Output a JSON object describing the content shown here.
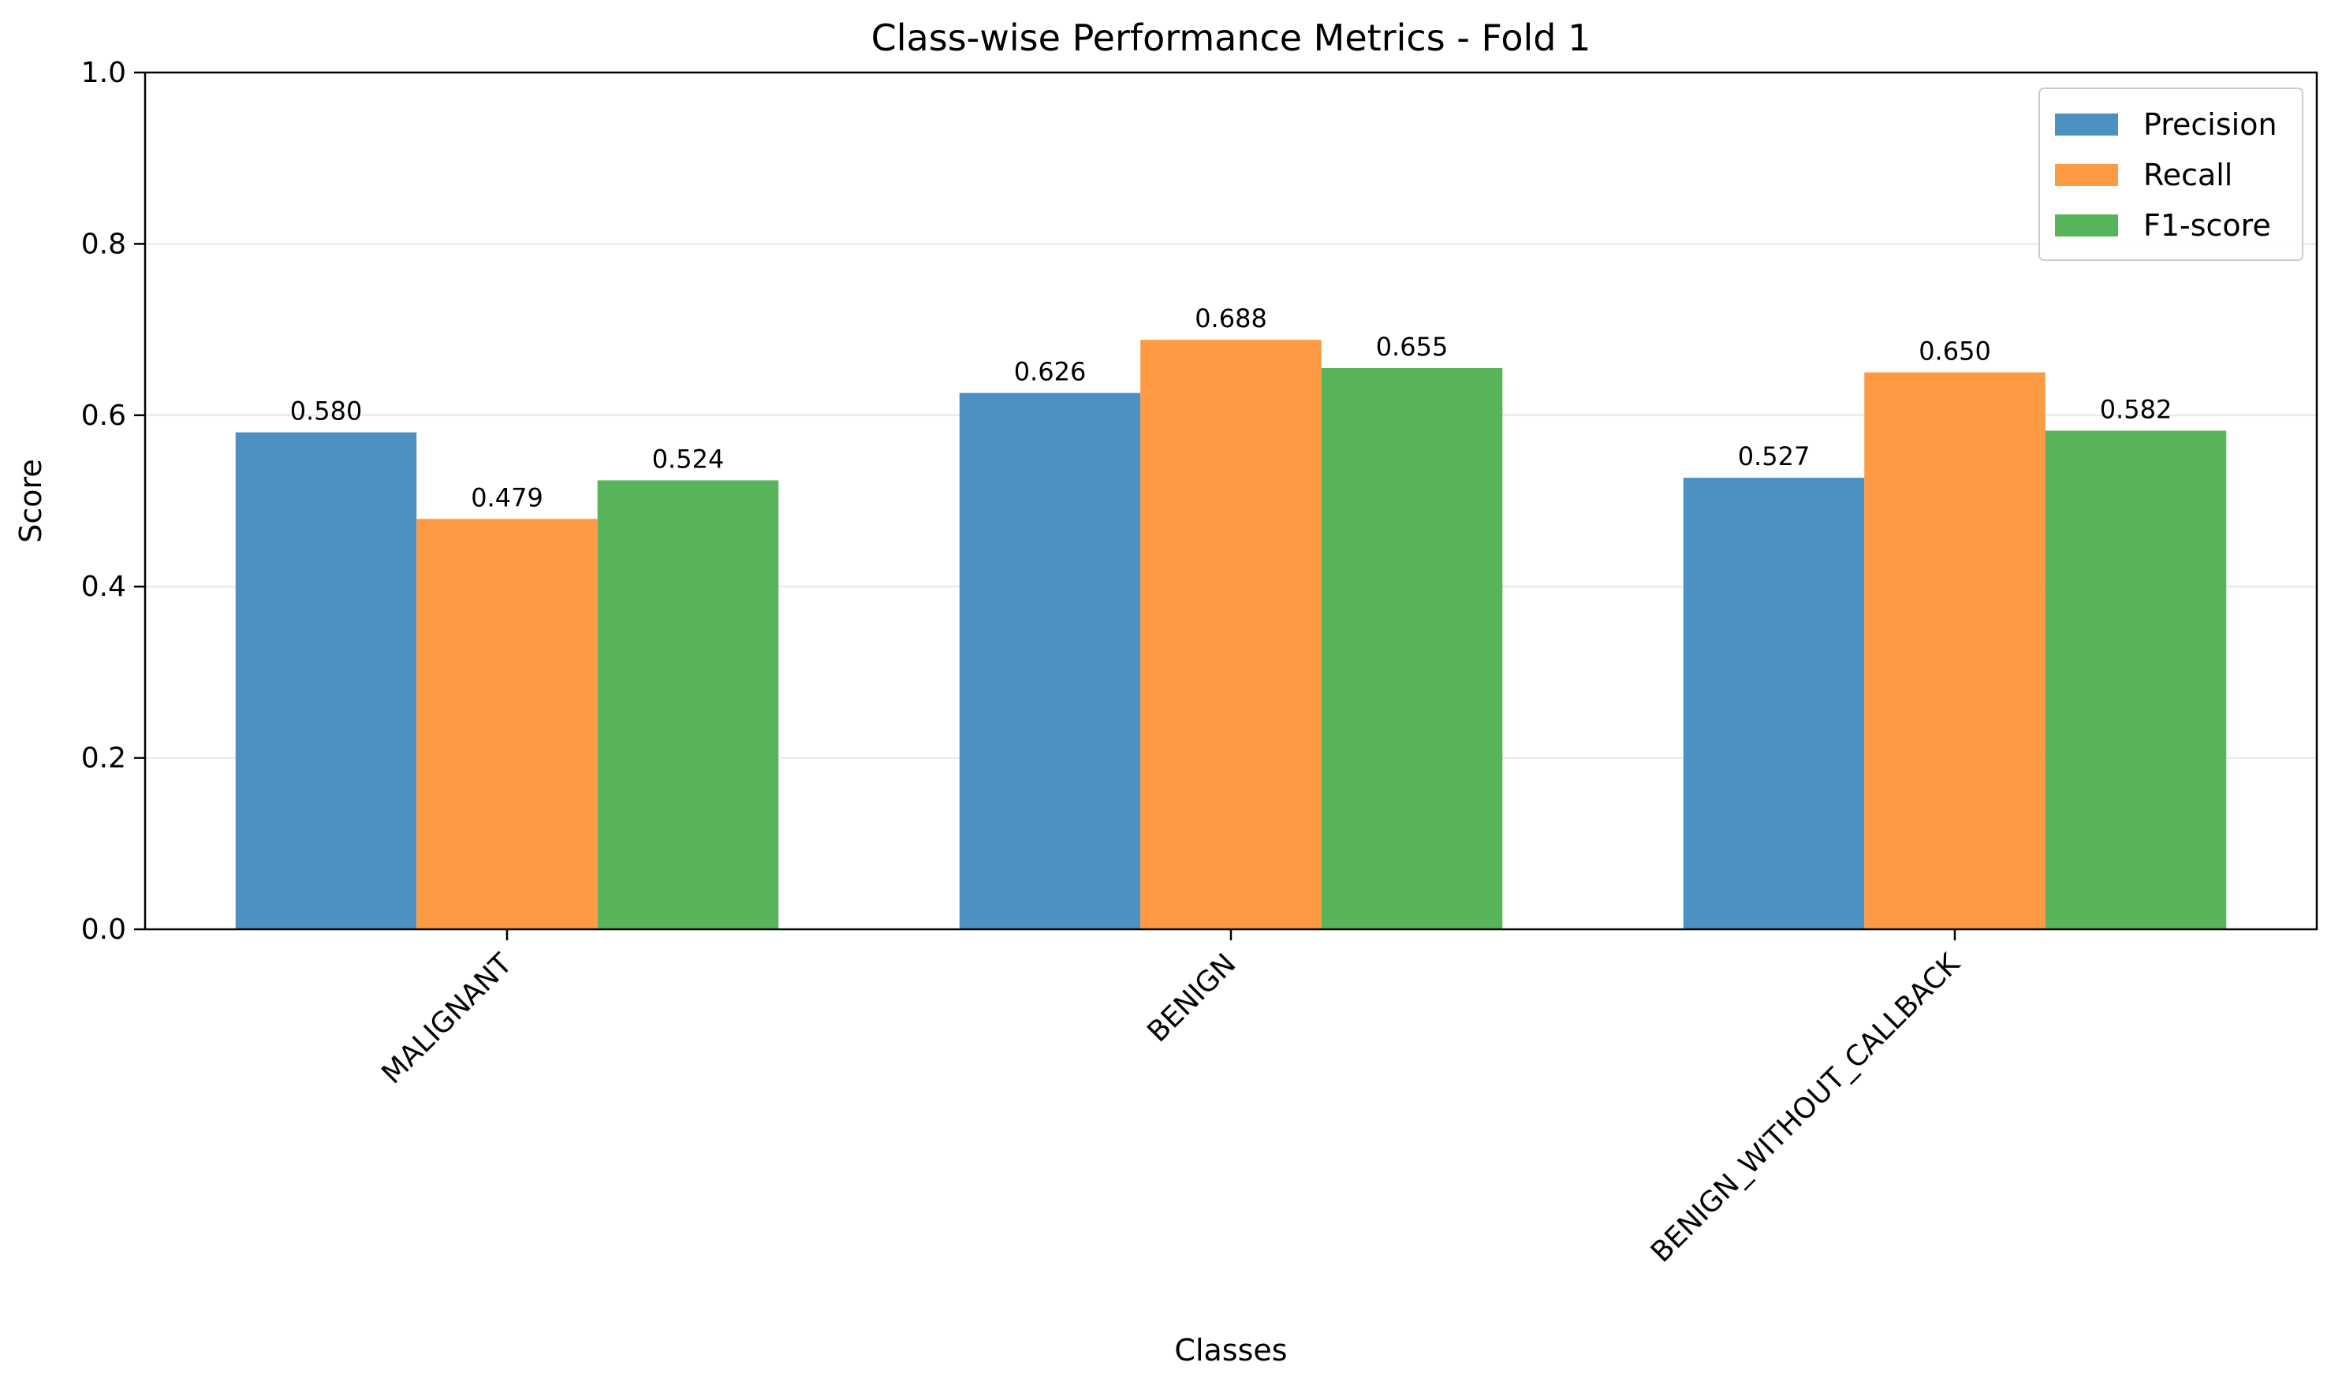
{
  "chart_data": {
    "type": "bar",
    "title": "Class-wise Performance Metrics - Fold 1",
    "xlabel": "Classes",
    "ylabel": "Score",
    "ylim": [
      0,
      1.0
    ],
    "yticks": [
      "0.0",
      "0.2",
      "0.4",
      "0.6",
      "0.8",
      "1.0"
    ],
    "grid": "y",
    "legend_position": "top-right",
    "categories": [
      "MALIGNANT",
      "BENIGN",
      "BENIGN_WITHOUT_CALLBACK"
    ],
    "series": [
      {
        "name": "Precision",
        "color": "#4c91c2",
        "values": [
          0.58,
          0.626,
          0.527
        ],
        "labels": [
          "0.580",
          "0.626",
          "0.527"
        ]
      },
      {
        "name": "Recall",
        "color": "#fd9a43",
        "values": [
          0.479,
          0.688,
          0.65
        ],
        "labels": [
          "0.479",
          "0.688",
          "0.650"
        ]
      },
      {
        "name": "F1-score",
        "color": "#58b45a",
        "values": [
          0.524,
          0.655,
          0.582
        ],
        "labels": [
          "0.524",
          "0.655",
          "0.582"
        ]
      }
    ]
  }
}
